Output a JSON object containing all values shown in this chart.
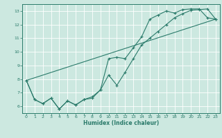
{
  "title": "",
  "xlabel": "Humidex (Indice chaleur)",
  "ylabel": "",
  "bg_color": "#cce8e0",
  "grid_color": "#ffffff",
  "line_color": "#2a7a6a",
  "xlim": [
    -0.5,
    23.5
  ],
  "ylim": [
    5.5,
    13.5
  ],
  "xticks": [
    0,
    1,
    2,
    3,
    4,
    5,
    6,
    7,
    8,
    9,
    10,
    11,
    12,
    13,
    14,
    15,
    16,
    17,
    18,
    19,
    20,
    21,
    22,
    23
  ],
  "yticks": [
    6,
    7,
    8,
    9,
    10,
    11,
    12,
    13
  ],
  "line1_x": [
    0,
    1,
    2,
    3,
    4,
    5,
    6,
    7,
    8,
    9,
    10,
    11,
    12,
    13,
    14,
    15,
    16,
    17,
    18,
    19,
    20,
    21,
    22,
    23
  ],
  "line1_y": [
    7.9,
    6.5,
    6.2,
    6.6,
    5.8,
    6.4,
    6.1,
    6.5,
    6.6,
    7.2,
    9.5,
    9.6,
    9.5,
    10.3,
    11.1,
    12.4,
    12.7,
    13.0,
    12.85,
    13.1,
    13.15,
    13.15,
    12.5,
    12.4
  ],
  "line2_x": [
    0,
    1,
    2,
    3,
    4,
    5,
    6,
    7,
    8,
    9,
    10,
    11,
    12,
    13,
    14,
    15,
    16,
    17,
    18,
    19,
    20,
    21,
    22,
    23
  ],
  "line2_y": [
    7.9,
    6.5,
    6.2,
    6.6,
    5.8,
    6.4,
    6.1,
    6.5,
    6.7,
    7.2,
    8.3,
    7.55,
    8.5,
    9.5,
    10.5,
    11.0,
    11.5,
    12.0,
    12.5,
    12.8,
    13.05,
    13.1,
    13.15,
    12.4
  ],
  "line3_x": [
    0,
    23
  ],
  "line3_y": [
    7.9,
    12.4
  ]
}
